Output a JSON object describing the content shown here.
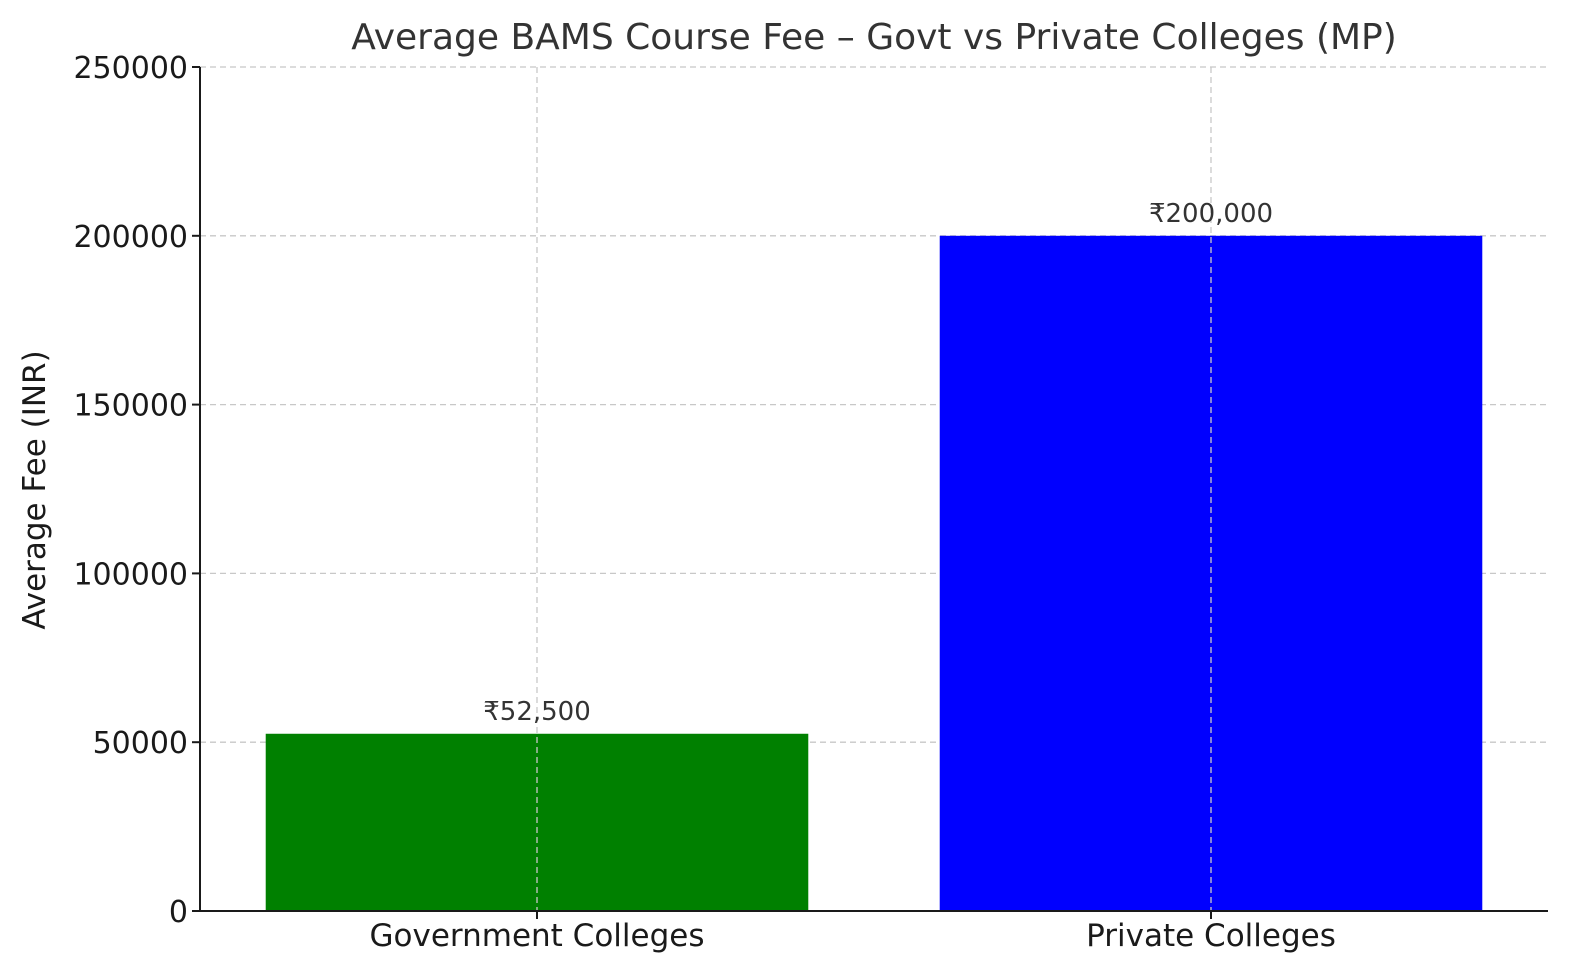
{
  "chart_data": {
    "type": "bar",
    "title": "Average BAMS Course Fee – Govt vs Private Colleges (MP)",
    "xlabel": "",
    "ylabel": "Average Fee (INR)",
    "categories": [
      "Government Colleges",
      "Private Colleges"
    ],
    "values": [
      52500,
      200000
    ],
    "data_labels": [
      "₹52,500",
      "₹200,000"
    ],
    "colors": [
      "#008000",
      "#0000ff"
    ],
    "ylim": [
      0,
      250000
    ],
    "yticks": [
      0,
      50000,
      100000,
      150000,
      200000,
      250000
    ],
    "ytick_labels": [
      "0",
      "50000",
      "100000",
      "150000",
      "200000",
      "250000"
    ],
    "grid": true,
    "legend": "none"
  }
}
